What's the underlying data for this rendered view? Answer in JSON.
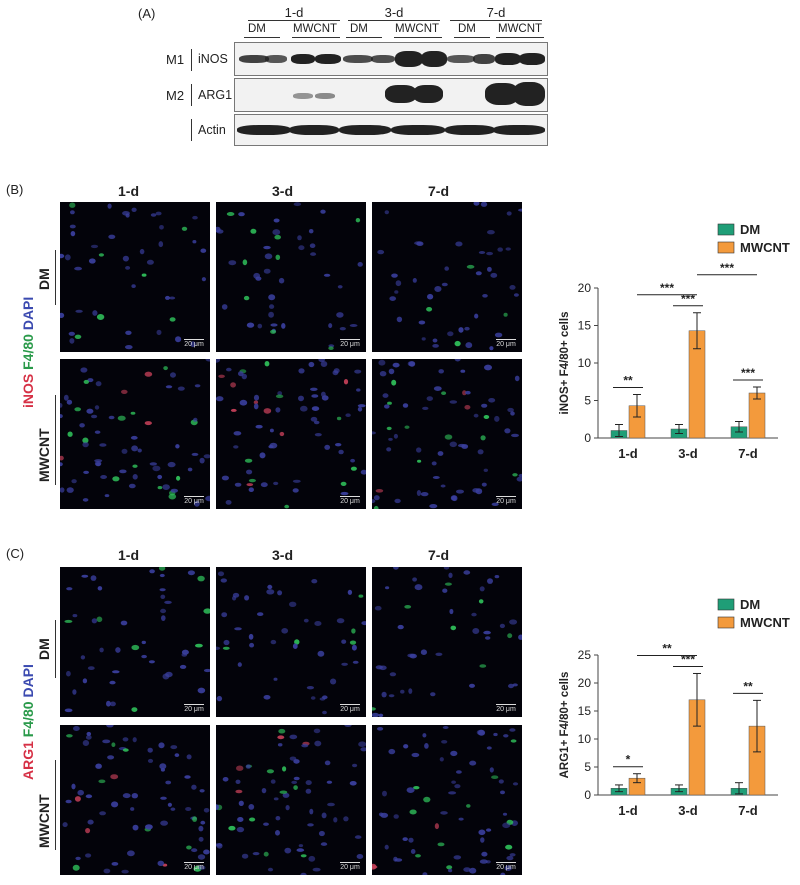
{
  "panel_labels": [
    "(A)",
    "(B)",
    "(C)"
  ],
  "western_blot": {
    "timepoints": [
      "1-d",
      "3-d",
      "7-d"
    ],
    "groups": [
      "DM",
      "MWCNT",
      "DM",
      "MWCNT",
      "DM",
      "MWCNT"
    ],
    "rows": [
      {
        "group": "M1",
        "marker": "iNOS"
      },
      {
        "group": "M2",
        "marker": "ARG1"
      },
      {
        "group": "",
        "marker": "Actin"
      }
    ]
  },
  "panel_b": {
    "timepoints": [
      "1-d",
      "3-d",
      "7-d"
    ],
    "row_labels": [
      "DM",
      "MWCNT"
    ],
    "stain": {
      "red": "iNOS",
      "green": "F4/80",
      "blue": "DAPI"
    },
    "scale_bar": "20 μm"
  },
  "panel_c": {
    "timepoints": [
      "1-d",
      "3-d",
      "7-d"
    ],
    "row_labels": [
      "DM",
      "MWCNT"
    ],
    "stain": {
      "red": "ARG1",
      "green": "F4/80",
      "blue": "DAPI"
    },
    "scale_bar": "20 μm"
  },
  "colors": {
    "DM": "#1f9e77",
    "MWCNT": "#f39a3c"
  },
  "chart_data": [
    {
      "type": "bar",
      "categories": [
        "1-d",
        "3-d",
        "7-d"
      ],
      "series": [
        {
          "name": "DM",
          "values": [
            1.0,
            1.2,
            1.5
          ],
          "errors": [
            0.8,
            0.6,
            0.7
          ]
        },
        {
          "name": "MWCNT",
          "values": [
            4.3,
            14.3,
            6.0
          ],
          "errors": [
            1.5,
            2.4,
            0.8
          ]
        }
      ],
      "ylabel": "iNOS+ F4/80+ cells",
      "ylim": [
        0,
        20
      ],
      "yticks": [
        0,
        5,
        10,
        15,
        20
      ],
      "legend_position": "top-right",
      "significance": [
        {
          "label": "**",
          "from": "1-d DM",
          "to": "1-d MWCNT"
        },
        {
          "label": "***",
          "from": "3-d DM",
          "to": "3-d MWCNT"
        },
        {
          "label": "***",
          "from": "7-d DM",
          "to": "7-d MWCNT"
        },
        {
          "label": "***",
          "from": "1-d MWCNT",
          "to": "3-d MWCNT"
        },
        {
          "label": "***",
          "from": "3-d MWCNT",
          "to": "7-d MWCNT"
        }
      ]
    },
    {
      "type": "bar",
      "categories": [
        "1-d",
        "3-d",
        "7-d"
      ],
      "series": [
        {
          "name": "DM",
          "values": [
            1.2,
            1.2,
            1.2
          ],
          "errors": [
            0.6,
            0.6,
            1.0
          ]
        },
        {
          "name": "MWCNT",
          "values": [
            3.0,
            17.0,
            12.3
          ],
          "errors": [
            0.8,
            4.7,
            4.6
          ]
        }
      ],
      "ylabel": "ARG1+ F4/80+ cells",
      "ylim": [
        0,
        25
      ],
      "yticks": [
        0,
        5,
        10,
        15,
        20,
        25
      ],
      "legend_position": "top-right",
      "significance": [
        {
          "label": "*",
          "from": "1-d DM",
          "to": "1-d MWCNT"
        },
        {
          "label": "***",
          "from": "3-d DM",
          "to": "3-d MWCNT"
        },
        {
          "label": "**",
          "from": "7-d DM",
          "to": "7-d MWCNT"
        },
        {
          "label": "**",
          "from": "1-d MWCNT",
          "to": "3-d MWCNT"
        }
      ]
    }
  ]
}
